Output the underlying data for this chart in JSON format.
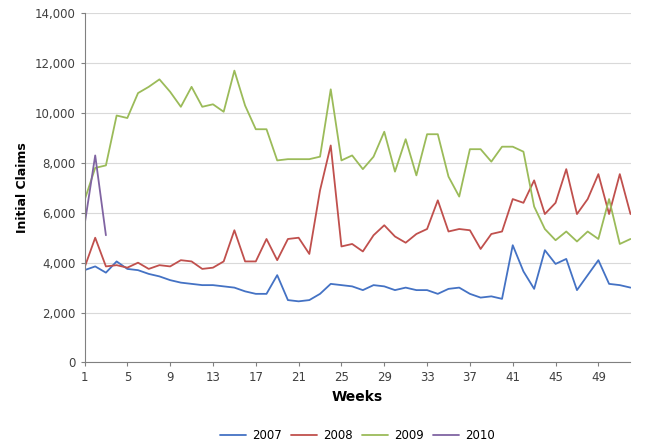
{
  "title": "",
  "xlabel": "Weeks",
  "ylabel": "Initial Claims",
  "xlim": [
    1,
    52
  ],
  "ylim": [
    0,
    14000
  ],
  "yticks": [
    0,
    2000,
    4000,
    6000,
    8000,
    10000,
    12000,
    14000
  ],
  "xticks": [
    1,
    5,
    9,
    13,
    17,
    21,
    25,
    29,
    33,
    37,
    41,
    45,
    49
  ],
  "series": {
    "2007": {
      "color": "#4472C4",
      "values": [
        3700,
        3850,
        3600,
        4050,
        3750,
        3700,
        3550,
        3450,
        3300,
        3200,
        3150,
        3100,
        3100,
        3050,
        3000,
        2850,
        2750,
        2750,
        3500,
        2500,
        2450,
        2500,
        2750,
        3150,
        3100,
        3050,
        2900,
        3100,
        3050,
        2900,
        3000,
        2900,
        2900,
        2750,
        2950,
        3000,
        2750,
        2600,
        2650,
        2550,
        4700,
        3650,
        2950,
        4500,
        3950,
        4150,
        2900,
        3500,
        4100,
        3150,
        3100,
        3000
      ]
    },
    "2008": {
      "color": "#C0504D",
      "values": [
        3800,
        5000,
        3850,
        3900,
        3800,
        4000,
        3750,
        3900,
        3850,
        4100,
        4050,
        3750,
        3800,
        4050,
        5300,
        4050,
        4050,
        4950,
        4100,
        4950,
        5000,
        4350,
        6900,
        8700,
        4650,
        4750,
        4450,
        5100,
        5500,
        5050,
        4800,
        5150,
        5350,
        6500,
        5250,
        5350,
        5300,
        4550,
        5150,
        5250,
        6550,
        6400,
        7300,
        5950,
        6400,
        7750,
        5950,
        6550,
        7550,
        5950,
        7550,
        5950
      ]
    },
    "2009": {
      "color": "#9BBB59",
      "values": [
        6500,
        7800,
        7900,
        9900,
        9800,
        10800,
        11050,
        11350,
        10850,
        10250,
        11050,
        10250,
        10350,
        10050,
        11700,
        10300,
        9350,
        9350,
        8100,
        8150,
        8150,
        8150,
        8250,
        10950,
        8100,
        8300,
        7750,
        8250,
        9250,
        7650,
        8950,
        7500,
        9150,
        9150,
        7450,
        6650,
        8550,
        8550,
        8050,
        8650,
        8650,
        8450,
        6250,
        5350,
        4900,
        5250,
        4850,
        5250,
        4950,
        6550,
        4750,
        4950
      ]
    },
    "2010": {
      "color": "#8064A2",
      "values": [
        5500,
        8300,
        5100,
        null,
        null,
        null,
        null,
        null,
        null,
        null,
        null,
        null,
        null,
        null,
        null,
        null,
        null,
        null,
        null,
        null,
        null,
        null,
        null,
        null,
        null,
        null,
        null,
        null,
        null,
        null,
        null,
        null,
        null,
        null,
        null,
        null,
        null,
        null,
        null,
        null,
        null,
        null,
        null,
        null,
        null,
        null,
        null,
        null,
        null,
        null,
        null,
        null
      ]
    }
  },
  "legend_labels": [
    "2007",
    "2008",
    "2009",
    "2010"
  ],
  "bg_color": "#FFFFFF",
  "plot_bg_color": "#FFFFFF",
  "grid_color": "#D9D9D9"
}
